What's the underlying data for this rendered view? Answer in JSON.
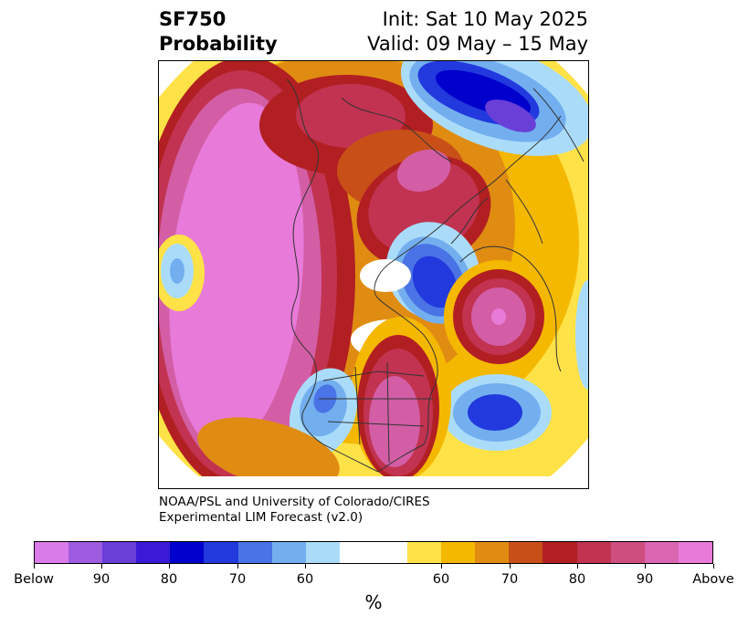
{
  "header": {
    "variable": "SF750",
    "product": "Probability",
    "init": "Init: Sat 10 May 2025",
    "valid": "Valid: 09 May – 15 May"
  },
  "credit": {
    "line1": "NOAA/PSL and University of Colorado/CIRES",
    "line2": "Experimental LIM Forecast (v2.0)"
  },
  "colorbar": {
    "unit": "%",
    "colors": [
      "#d97be8",
      "#9e5ce0",
      "#6a3fd8",
      "#3a1ad6",
      "#0000cc",
      "#2239dd",
      "#4a73e6",
      "#73afef",
      "#aadcfa",
      "#ffffff",
      "#ffffff",
      "#ffe247",
      "#f5b800",
      "#e08c12",
      "#c85018",
      "#b21f22",
      "#c13350",
      "#ce4e80",
      "#db66b2",
      "#e87ad9"
    ],
    "tick_labels": [
      "Below",
      "90",
      "80",
      "70",
      "60",
      "60",
      "70",
      "80",
      "90",
      "Above"
    ]
  },
  "map_colors": {
    "ocean": "#ffffff",
    "pink": "#e87ad9",
    "magenta": "#d35ea6",
    "crimson": "#c13350",
    "red": "#b21f22",
    "orange_red": "#c85018",
    "orange": "#e08c12",
    "gold": "#f5b800",
    "yellow": "#ffe247",
    "pale_blue": "#aadcfa",
    "light_blue": "#73afef",
    "mid_blue": "#4a73e6",
    "blue": "#2239dd",
    "dark_blue": "#0000cc",
    "violet": "#6a3fd8",
    "coast": "#333333"
  }
}
